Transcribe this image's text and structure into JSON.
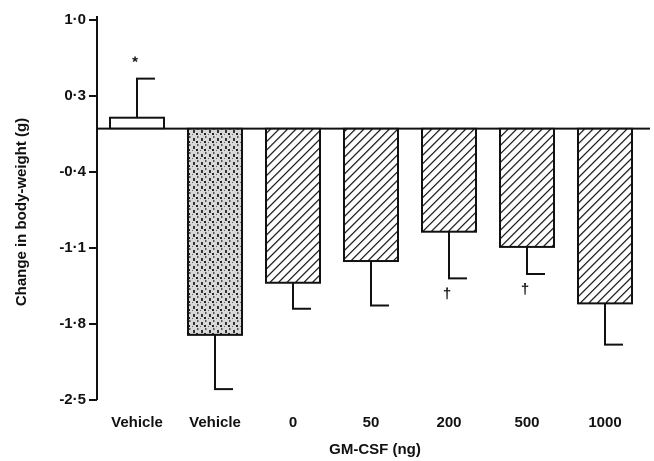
{
  "chart_data": {
    "type": "bar",
    "x_label": "GM-CSF (ng)",
    "y_label": "Change in body-weight (g)",
    "categories": [
      "Vehicle",
      "Vehicle",
      "0",
      "50",
      "200",
      "500",
      "1000"
    ],
    "values": [
      0.1,
      -1.9,
      -1.42,
      -1.22,
      -0.95,
      -1.09,
      -1.61
    ],
    "errors": [
      0.36,
      0.5,
      0.24,
      0.41,
      0.43,
      0.25,
      0.38
    ],
    "annotations": [
      "*",
      null,
      null,
      null,
      "†",
      "†",
      null
    ],
    "patterns": [
      "plain",
      "stipple",
      "hatch",
      "hatch",
      "hatch",
      "hatch",
      "hatch"
    ],
    "color": "#111111",
    "ylim": [
      -2.5,
      1.0
    ],
    "yticks": [
      {
        "value": 1.0,
        "label": "1·0"
      },
      {
        "value": 0.3,
        "label": "0·3"
      },
      {
        "value": -0.4,
        "label": "-0·4"
      },
      {
        "value": -1.1,
        "label": "-1·1"
      },
      {
        "value": -1.8,
        "label": "-1·8"
      },
      {
        "value": -2.5,
        "label": "-2·5"
      }
    ]
  }
}
